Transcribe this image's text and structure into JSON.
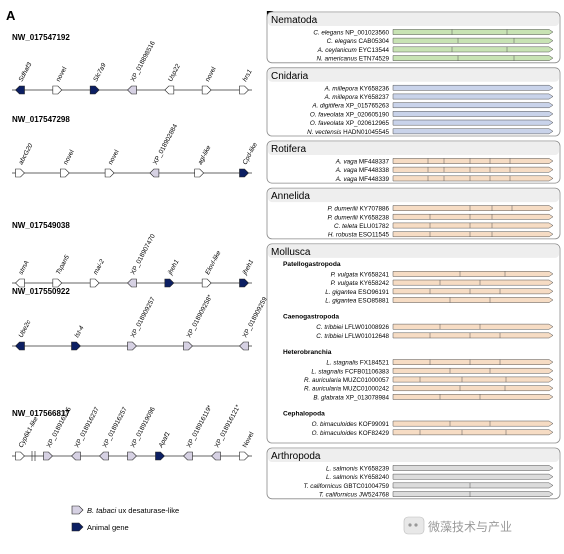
{
  "panel_a": {
    "label": "A",
    "contigs": [
      {
        "id": "NW_017547192",
        "genes": [
          {
            "name": "Sdhaf3",
            "type": "animal",
            "dir": "L",
            "italic": true
          },
          {
            "name": "novel",
            "type": "novel",
            "dir": "R",
            "italic": false
          },
          {
            "name": "Slc7a9",
            "type": "animal",
            "dir": "R",
            "italic": true
          },
          {
            "name": "XP_018898516",
            "type": "desat",
            "dir": "L",
            "italic": false
          },
          {
            "name": "Usp22",
            "type": "novel",
            "dir": "L",
            "italic": true
          },
          {
            "name": "novel",
            "type": "novel",
            "dir": "R",
            "italic": false
          },
          {
            "name": "hrs1",
            "type": "novel",
            "dir": "R",
            "italic": true
          }
        ]
      },
      {
        "id": "NW_017547298",
        "genes": [
          {
            "name": "abcG20",
            "type": "novel",
            "dir": "R",
            "italic": true
          },
          {
            "name": "novel",
            "type": "novel",
            "dir": "R",
            "italic": false
          },
          {
            "name": "novel",
            "type": "novel",
            "dir": "R",
            "italic": false
          },
          {
            "name": "XP_018902884",
            "type": "desat",
            "dir": "L",
            "italic": false
          },
          {
            "name": "agl-like",
            "type": "novel",
            "dir": "R",
            "italic": true
          },
          {
            "name": "Cpd-like",
            "type": "animal",
            "dir": "R",
            "italic": true
          }
        ]
      },
      {
        "id": "NW_017549038",
        "genes": [
          {
            "name": "stmA",
            "type": "novel",
            "dir": "L",
            "italic": true
          },
          {
            "name": "Tspan5",
            "type": "novel",
            "dir": "R",
            "italic": true
          },
          {
            "name": "mai-2",
            "type": "novel",
            "dir": "R",
            "italic": true
          },
          {
            "name": "XP_018907470",
            "type": "desat",
            "dir": "L",
            "italic": false
          },
          {
            "name": "jheh1",
            "type": "animal",
            "dir": "R",
            "italic": true
          },
          {
            "name": "Elovl-like",
            "type": "novel",
            "dir": "R",
            "italic": true
          },
          {
            "name": "jheh1",
            "type": "animal",
            "dir": "R",
            "italic": true
          }
        ]
      },
      {
        "id": "NW_017550922",
        "genes": [
          {
            "name": "Ube2c",
            "type": "animal",
            "dir": "L",
            "italic": true
          },
          {
            "name": "lst-4",
            "type": "animal",
            "dir": "R",
            "italic": true
          },
          {
            "name": "XP_018909257",
            "type": "desat",
            "dir": "R",
            "italic": false
          },
          {
            "name": "XP_018909258*",
            "type": "desat",
            "dir": "R",
            "italic": false
          },
          {
            "name": "XP_018909259",
            "type": "desat",
            "dir": "L",
            "italic": false
          }
        ]
      },
      {
        "id": "NW_017566817",
        "genes": [
          {
            "name": "Cyp6k1-like",
            "type": "novel",
            "dir": "R",
            "italic": true
          },
          {
            "name": "XP_018916235",
            "type": "desat",
            "dir": "R",
            "italic": false
          },
          {
            "name": "XP_018916237",
            "type": "desat",
            "dir": "L",
            "italic": false
          },
          {
            "name": "XP_018916257",
            "type": "desat",
            "dir": "L",
            "italic": false
          },
          {
            "name": "XP_018919096",
            "type": "desat",
            "dir": "R",
            "italic": false
          },
          {
            "name": "Apaf1",
            "type": "animal",
            "dir": "R",
            "italic": true
          },
          {
            "name": "XP_018916119*",
            "type": "desat",
            "dir": "L",
            "italic": false
          },
          {
            "name": "XP_018916121*",
            "type": "desat",
            "dir": "L",
            "italic": false
          },
          {
            "name": "Novel",
            "type": "novel",
            "dir": "R",
            "italic": false
          }
        ]
      }
    ],
    "legend": [
      {
        "key": "desat",
        "species": "B. tabaci",
        "text": " ux desaturase-like"
      },
      {
        "key": "animal",
        "species": "",
        "text": "Animal gene"
      }
    ]
  },
  "panel_b": {
    "label": "B",
    "colors": {
      "Nematoda": "#c8e3b4",
      "Cnidaria": "#c9d3ea",
      "Rotifera": "#f6dcc4",
      "Annelida": "#f6dcc4",
      "Mollusca": "#f6dcc4",
      "Arthropoda": "#dcdcdc"
    },
    "groups": [
      {
        "name": "Nematoda",
        "entries": [
          {
            "sp": "C. elegans",
            "acc": "NP_001023560"
          },
          {
            "sp": "C. elegans",
            "acc": "CAB05304"
          },
          {
            "sp": "A. ceylanicum",
            "acc": "EYC13544"
          },
          {
            "sp": "N. americanus",
            "acc": "ETN74529"
          }
        ]
      },
      {
        "name": "Cnidaria",
        "entries": [
          {
            "sp": "A. millepora",
            "acc": "KY658236"
          },
          {
            "sp": "A. millepora",
            "acc": "KY658237"
          },
          {
            "sp": "A. digitifera",
            "acc": "XP_015765263"
          },
          {
            "sp": "O. faveolata",
            "acc": "XP_020605190"
          },
          {
            "sp": "O. faveolata",
            "acc": "XP_020612965"
          },
          {
            "sp": "N. vectensis",
            "acc": "HADN01045545"
          }
        ]
      },
      {
        "name": "Rotifera",
        "entries": [
          {
            "sp": "A. vaga",
            "acc": "MF448337"
          },
          {
            "sp": "A. vaga",
            "acc": "MF448338"
          },
          {
            "sp": "A. vaga",
            "acc": "MF448339"
          }
        ]
      },
      {
        "name": "Annelida",
        "entries": [
          {
            "sp": "P. dumerilii",
            "acc": "KY707886"
          },
          {
            "sp": "P. dumerilii",
            "acc": "KY658238"
          },
          {
            "sp": "C. teleta",
            "acc": "ELU01782"
          },
          {
            "sp": "H. robusta",
            "acc": "ESO11545"
          }
        ]
      },
      {
        "name": "Mollusca",
        "subgroups": [
          {
            "name": "Patellogastropoda",
            "entries": [
              {
                "sp": "P. vulgata",
                "acc": "KY658241"
              },
              {
                "sp": "P. vulgata",
                "acc": "KY658242"
              },
              {
                "sp": "L. gigantea",
                "acc": "ESO96191"
              },
              {
                "sp": "L. gigantea",
                "acc": "ESO85881"
              }
            ]
          },
          {
            "name": "Caenogastropoda",
            "entries": [
              {
                "sp": "C. tribbiei",
                "acc": "LFLW01008926"
              },
              {
                "sp": "C. tribbiei",
                "acc": "LFLW01012648"
              }
            ]
          },
          {
            "name": "Heterobranchia",
            "entries": [
              {
                "sp": "L. stagnalis",
                "acc": "FX184521"
              },
              {
                "sp": "L. stagnalis",
                "acc": "FCFB01106383"
              },
              {
                "sp": "R. auricularia",
                "acc": "MUZC01000057"
              },
              {
                "sp": "R. auricularia",
                "acc": "MUZC01000242"
              },
              {
                "sp": "B. glabrata",
                "acc": "XP_013078984"
              }
            ]
          },
          {
            "name": "Cephalopoda",
            "entries": [
              {
                "sp": "O. bimaculoides",
                "acc": "KOF99091"
              },
              {
                "sp": "O. bimaculoides",
                "acc": "KOF82429"
              }
            ]
          }
        ]
      },
      {
        "name": "Arthropoda",
        "entries": [
          {
            "sp": "L. salmonis",
            "acc": "KY658239"
          },
          {
            "sp": "L. salmonis",
            "acc": "KY658240"
          },
          {
            "sp": "T. californicus",
            "acc": "GBTC01004759"
          },
          {
            "sp": "T. californicus",
            "acc": "JW524768"
          }
        ]
      }
    ]
  },
  "watermark": {
    "text": "微藻技术与产业"
  }
}
